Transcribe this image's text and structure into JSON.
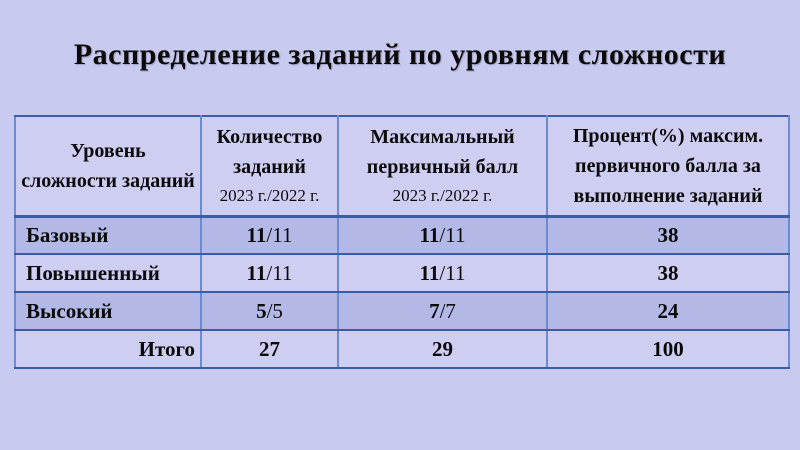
{
  "colors": {
    "bg": "#c9caf0",
    "cell-light": "#cdcef2",
    "cell-dark": "#b3b8e7",
    "border-h": "#3b5ca3",
    "border-v": "#6c8ad0",
    "border-outer": "#5a7ac2",
    "text": "#0a0a0a"
  },
  "slide": {
    "title": "Распределение заданий по уровням сложности"
  },
  "table": {
    "columns": [
      {
        "title": "Уровень сложности заданий",
        "years": ""
      },
      {
        "title": "Количество заданий",
        "years": "2023 г./2022 г."
      },
      {
        "title": "Максимальный первичный балл",
        "years": "2023 г./2022 г."
      },
      {
        "title": "Процент(%) максим. первичного балла за выполнение заданий",
        "years": ""
      }
    ],
    "rows": [
      {
        "level": "Базовый",
        "count_main": "11",
        "count_sub": "/11",
        "max_main": "11",
        "max_sub": "/11",
        "percent": "38"
      },
      {
        "level": "Повышенный",
        "count_main": "11",
        "count_sub": "/11",
        "max_main": "11",
        "max_sub": "/11",
        "percent": "38"
      },
      {
        "level": "Высокий",
        "count_main": "5",
        "count_sub": "/5",
        "max_main": "7",
        "max_sub": "/7",
        "percent": "24"
      },
      {
        "level": "Итого",
        "count_main": "27",
        "count_sub": "",
        "max_main": "29",
        "max_sub": "",
        "percent": "100"
      }
    ]
  }
}
